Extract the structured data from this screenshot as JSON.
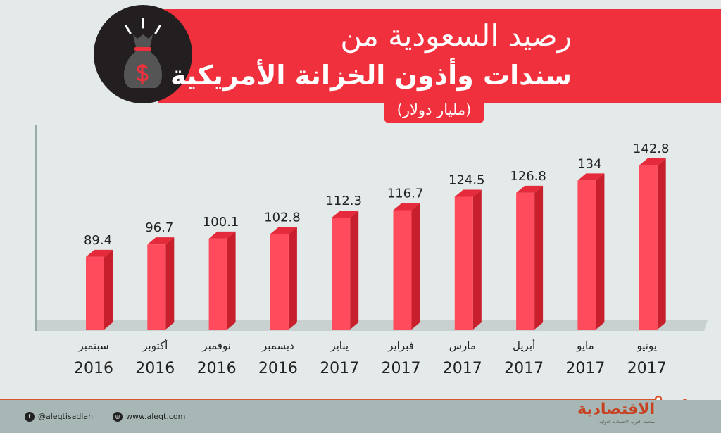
{
  "header": {
    "title_line1": "رصيد السعودية من",
    "title_line2": "سندات وأذون الخزانة الأمريكية",
    "unit": "(مليار دولار)",
    "icon": "money-bag-dollar-icon"
  },
  "chart_data": {
    "type": "bar",
    "title": "رصيد السعودية من سندات وأذون الخزانة الأمريكية",
    "ylabel": "(مليار دولار)",
    "categories": [
      {
        "month": "سبتمبر",
        "year": "2016"
      },
      {
        "month": "أكتوبر",
        "year": "2016"
      },
      {
        "month": "نوفمبر",
        "year": "2016"
      },
      {
        "month": "ديسمبر",
        "year": "2016"
      },
      {
        "month": "يناير",
        "year": "2017"
      },
      {
        "month": "فبراير",
        "year": "2017"
      },
      {
        "month": "مارس",
        "year": "2017"
      },
      {
        "month": "أبريل",
        "year": "2017"
      },
      {
        "month": "مايو",
        "year": "2017"
      },
      {
        "month": "يونيو",
        "year": "2017"
      }
    ],
    "values": [
      89.4,
      96.7,
      100.1,
      102.8,
      112.3,
      116.7,
      124.5,
      126.8,
      134,
      142.8
    ],
    "value_labels": [
      "89.4",
      "96.7",
      "100.1",
      "102.8",
      "112.3",
      "116.7",
      "124.5",
      "126.8",
      "134",
      "142.8"
    ],
    "ylim": [
      47,
      150
    ],
    "colors": {
      "front": "#ff4b5c",
      "side": "#c81f2d",
      "top": "#e52b3b",
      "floor": "#c9d1d0"
    }
  },
  "footer": {
    "twitter": "@aleqtisadiah",
    "website": "www.aleqt.com",
    "logo": "الاقتصادية",
    "logo_sub": "صحيفة العرب الاقتصادية الدولية"
  }
}
